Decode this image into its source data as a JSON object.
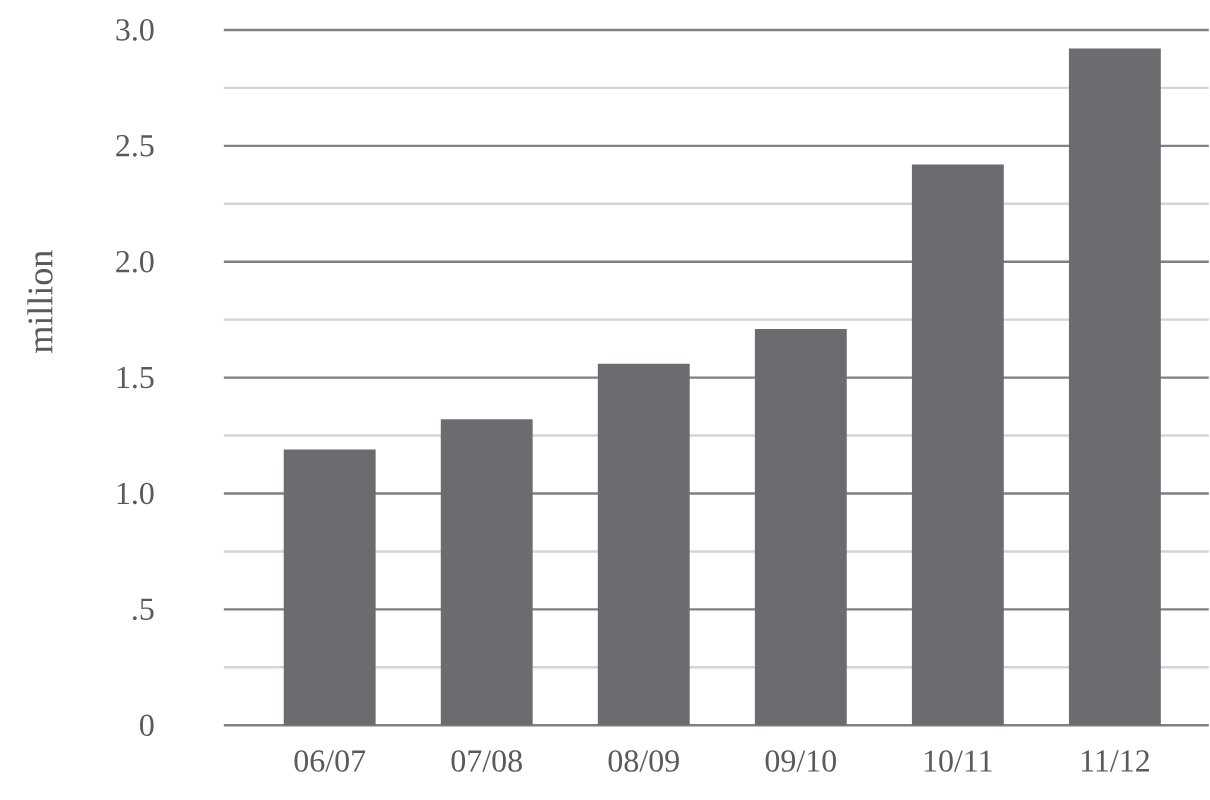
{
  "chart_data": {
    "type": "bar",
    "ylabel": "million",
    "categories": [
      "06/07",
      "07/08",
      "08/09",
      "09/10",
      "10/11",
      "11/12"
    ],
    "values": [
      1.19,
      1.32,
      1.56,
      1.71,
      2.42,
      2.92
    ],
    "color": "#6b6c70",
    "ylim": [
      0,
      3
    ],
    "yticks": [
      0,
      {
        "value": 0.25,
        "label": null
      },
      {
        "value": 0.5,
        "label": ".5"
      },
      {
        "value": 0.75,
        "label": null
      },
      {
        "value": 1,
        "label": "1.0"
      },
      {
        "value": 1.25,
        "label": null
      },
      1.5,
      {
        "value": 1.75,
        "label": null
      },
      {
        "value": 2,
        "label": "2.0"
      },
      {
        "value": 2.25,
        "label": null
      },
      2.5,
      {
        "value": 2.75,
        "label": null
      },
      {
        "value": 3,
        "label": "3.0"
      }
    ],
    "grid": "y"
  }
}
